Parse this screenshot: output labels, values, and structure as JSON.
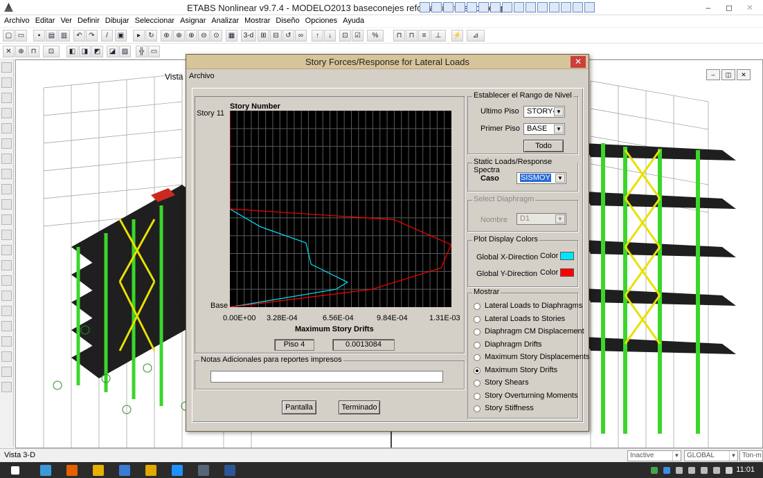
{
  "app": {
    "title": "ETABS Nonlinear v9.7.4 - MODELO2013 baseconejes reforzamiento solo tres p",
    "menu": [
      "Archivo",
      "Editar",
      "Ver",
      "Definir",
      "Dibujar",
      "Seleccionar",
      "Asignar",
      "Analizar",
      "Mostrar",
      "Diseño",
      "Opciones",
      "Ayuda"
    ],
    "toolbar1_text": [
      "3-d"
    ],
    "viewport_title": "Vista",
    "status_text": "Vista 3-D",
    "status_combos": [
      "Inactive",
      "GLOBAL",
      "Ton-m"
    ],
    "clock": "11:01"
  },
  "dialog": {
    "title": "Story Forces/Response for Lateral Loads",
    "menu": "Archivo",
    "range": {
      "legend": "Establecer el Rango de Nivel",
      "top_label": "Ultimo Piso",
      "top_value": "STORY4",
      "bottom_label": "Primer Piso",
      "bottom_value": "BASE",
      "all_button": "Todo"
    },
    "loads": {
      "legend": "Static Loads/Response Spectra",
      "case_label": "Caso",
      "case_value": "SISMOY"
    },
    "diaphragm": {
      "legend": "Select Diaphragm",
      "name_label": "Nombre",
      "name_value": "D1"
    },
    "colors": {
      "legend": "Plot Display Colors",
      "x_label": "Global X-Direction",
      "x_color_label": "Color",
      "x_color": "#00e5ff",
      "y_label": "Global Y-Direction",
      "y_color_label": "Color",
      "y_color": "#ff0000"
    },
    "show": {
      "legend": "Mostrar",
      "options": [
        "Lateral Loads to Diaphragms",
        "Lateral Loads to Stories",
        "Diaphragm CM Displacement",
        "Diaphragm Drifts",
        "Maximum Story Displacements",
        "Maximum Story Drifts",
        "Story Shears",
        "Story Overturning Moments",
        "Story Stiffness"
      ],
      "selected": "Maximum Story Drifts"
    },
    "readout": {
      "story": "Piso 4",
      "value": "0.0013084"
    },
    "notes": {
      "legend": "Notas Adicionales para reportes impresos",
      "value": ""
    },
    "buttons": {
      "screen": "Pantalla",
      "done": "Terminado"
    }
  },
  "chart_data": {
    "type": "line",
    "title": "Story Number",
    "xlabel": "Maximum Story Drifts",
    "ylabel": "",
    "y_tick_labels": [
      "Story 11",
      "Base"
    ],
    "x_tick_labels": [
      "0.00E+00",
      "3.28E-04",
      "6.56E-04",
      "9.84E-04",
      "1.31E-03"
    ],
    "xlim": [
      0,
      0.00131
    ],
    "ylim": [
      0,
      11
    ],
    "grid": true,
    "series": [
      {
        "color": "#00e5ff",
        "points": [
          [
            0.0,
            0.0
          ],
          [
            0.000627,
            1.0
          ],
          [
            0.000695,
            1.4
          ],
          [
            0.00048,
            2.4
          ],
          [
            0.00045,
            3.6
          ],
          [
            0.00018,
            4.5
          ],
          [
            0.0,
            5.5
          ],
          [
            0.0,
            11.0
          ]
        ]
      },
      {
        "color": "#ff0000",
        "points": [
          [
            0.0,
            0.0
          ],
          [
            0.00084,
            1.0
          ],
          [
            0.00125,
            2.2
          ],
          [
            0.0013084,
            3.5
          ],
          [
            0.00097,
            4.9
          ],
          [
            0.0,
            5.5
          ],
          [
            0.0,
            11.0
          ]
        ]
      }
    ]
  }
}
